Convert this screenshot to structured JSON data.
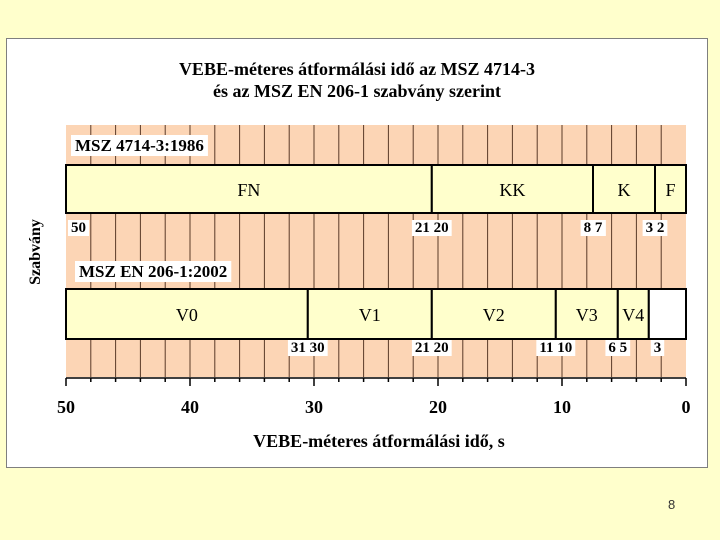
{
  "page": {
    "number": "8"
  },
  "colors": {
    "slide_bg": "#ffffcc",
    "stripe_fill": "#fcd5b5",
    "band_fill": "#ffffcc",
    "blank_fill": "#ffffff",
    "tick_line": "#5a3a28",
    "grey_text": "#999999"
  },
  "chart_data": {
    "type": "bar",
    "title": "VEBE-méteres átformálási idő az MSZ 4714-3",
    "subtitle": "és az MSZ EN 206-1 szabvány szerint",
    "xlabel": "VEBE-méteres átformálási idő, s",
    "ylabel": "Szabvány",
    "xlim": [
      50,
      0
    ],
    "x_reversed": true,
    "x_ticks": [
      50,
      40,
      30,
      20,
      10,
      0
    ],
    "x_tick_labels": [
      "50",
      "40",
      "30",
      "20",
      "10",
      "0"
    ],
    "grid": true,
    "standards": [
      {
        "name": "MSZ 4714-3:1986",
        "classes": [
          {
            "label": "FN",
            "from": 50,
            "to": 20.5,
            "label_color": "#000000"
          },
          {
            "label": "KK",
            "from": 20.5,
            "to": 7.5,
            "label_color": "#000000"
          },
          {
            "label": "K",
            "from": 7.5,
            "to": 2.5,
            "label_color": "#000000"
          },
          {
            "label": "F",
            "from": 2.5,
            "to": 0,
            "label_color": "#000000"
          }
        ],
        "boundary_labels": [
          {
            "text": "50",
            "at": 50,
            "align": "start"
          },
          {
            "text": "21 20",
            "at": 20.5,
            "align": "middle"
          },
          {
            "text": "8  7",
            "at": 7.5,
            "align": "middle"
          },
          {
            "text": "3  2",
            "at": 2.5,
            "align": "middle"
          }
        ]
      },
      {
        "name": "MSZ EN 206-1:2002",
        "classes": [
          {
            "label": "V0",
            "from": 50,
            "to": 30.5,
            "label_color": "#999999"
          },
          {
            "label": "V1",
            "from": 30.5,
            "to": 20.5,
            "label_color": "#000000"
          },
          {
            "label": "V2",
            "from": 20.5,
            "to": 10.5,
            "label_color": "#000000"
          },
          {
            "label": "V3",
            "from": 10.5,
            "to": 5.5,
            "label_color": "#000000"
          },
          {
            "label": "V4",
            "from": 5.5,
            "to": 3,
            "label_color": "#999999"
          },
          {
            "label": "",
            "from": 3,
            "to": 0,
            "label_color": "#000000",
            "blank": true
          }
        ],
        "boundary_labels": [
          {
            "text": "31 30",
            "at": 30.5,
            "align": "middle"
          },
          {
            "text": "21 20",
            "at": 20.5,
            "align": "middle"
          },
          {
            "text": "11 10",
            "at": 10.5,
            "align": "middle"
          },
          {
            "text": "6  5",
            "at": 5.5,
            "align": "middle"
          },
          {
            "text": "3",
            "at": 2.3,
            "align": "middle"
          }
        ]
      }
    ]
  }
}
